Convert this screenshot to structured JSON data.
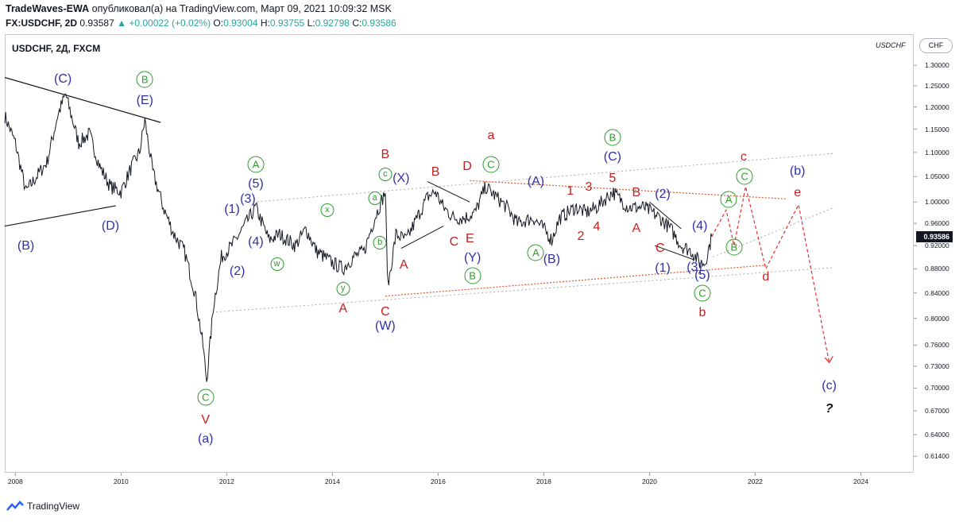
{
  "header": {
    "author": "TradeWaves-EWA",
    "published_text": "опубликовал(а) на TradingView.com, Март 09, 2021 10:09:32 MSK",
    "symbol_line": "FX:USDCHF, 2D",
    "last": "0.93587",
    "change": "+0.00022 (+0.02%)",
    "o_label": "O:",
    "o": "0.93004",
    "h_label": "H:",
    "h": "0.93755",
    "l_label": "L:",
    "l": "0.92798",
    "c_label": "C:",
    "c": "0.93586"
  },
  "chart_title": "USDCHF, 2Д, FXCM",
  "watermark_symbol": "USDCHF",
  "currency_button": "CHF",
  "footer_brand": "TradingView",
  "colors": {
    "blue": "#2e31a8",
    "red": "#c81e1e",
    "green": "#2e9b2e",
    "candle": "#131722"
  },
  "chart_data": {
    "type": "line",
    "price_axis": {
      "ticks": [
        "1.30000",
        "1.25000",
        "1.20000",
        "1.15000",
        "1.10000",
        "1.05000",
        "1.00000",
        "0.96000",
        "0.92000",
        "0.88000",
        "0.84000",
        "0.80000",
        "0.76000",
        "0.73000",
        "0.70000",
        "0.67000",
        "0.64000",
        "0.61400"
      ],
      "scale": "log",
      "range": [
        0.595,
        1.38
      ]
    },
    "time_axis": {
      "ticks": [
        "2008",
        "2010",
        "2012",
        "2014",
        "2016",
        "2018",
        "2020",
        "2022",
        "2024"
      ],
      "range": [
        2007.8,
        2025.0
      ]
    },
    "last_price_label": "0.93586",
    "series": [
      {
        "values": [
          [
            2007.8,
            1.18
          ],
          [
            2008.0,
            1.12
          ],
          [
            2008.2,
            1.02
          ],
          [
            2008.4,
            1.05
          ],
          [
            2008.6,
            1.08
          ],
          [
            2008.8,
            1.18
          ],
          [
            2008.95,
            1.23
          ],
          [
            2009.2,
            1.12
          ],
          [
            2009.4,
            1.14
          ],
          [
            2009.6,
            1.07
          ],
          [
            2009.8,
            1.03
          ],
          [
            2010.0,
            1.02
          ],
          [
            2010.2,
            1.07
          ],
          [
            2010.35,
            1.1
          ],
          [
            2010.45,
            1.17
          ],
          [
            2010.6,
            1.06
          ],
          [
            2010.8,
            0.99
          ],
          [
            2011.0,
            0.94
          ],
          [
            2011.2,
            0.91
          ],
          [
            2011.4,
            0.84
          ],
          [
            2011.55,
            0.76
          ],
          [
            2011.62,
            0.71
          ],
          [
            2011.75,
            0.82
          ],
          [
            2011.9,
            0.9
          ],
          [
            2012.1,
            0.92
          ],
          [
            2012.3,
            0.95
          ],
          [
            2012.55,
            0.99
          ],
          [
            2012.8,
            0.93
          ],
          [
            2013.0,
            0.94
          ],
          [
            2013.3,
            0.92
          ],
          [
            2013.5,
            0.95
          ],
          [
            2013.7,
            0.91
          ],
          [
            2014.0,
            0.89
          ],
          [
            2014.2,
            0.88
          ],
          [
            2014.4,
            0.9
          ],
          [
            2014.6,
            0.91
          ],
          [
            2014.8,
            0.97
          ],
          [
            2015.0,
            1.02
          ],
          [
            2015.05,
            0.85
          ],
          [
            2015.2,
            0.94
          ],
          [
            2015.4,
            0.93
          ],
          [
            2015.6,
            0.97
          ],
          [
            2015.8,
            1.01
          ],
          [
            2015.95,
            1.02
          ],
          [
            2016.1,
            0.99
          ],
          [
            2016.3,
            0.97
          ],
          [
            2016.5,
            0.97
          ],
          [
            2016.7,
            0.98
          ],
          [
            2016.9,
            1.03
          ],
          [
            2017.1,
            1.01
          ],
          [
            2017.3,
            0.99
          ],
          [
            2017.5,
            0.96
          ],
          [
            2017.8,
            0.97
          ],
          [
            2018.0,
            0.95
          ],
          [
            2018.15,
            0.93
          ],
          [
            2018.3,
            0.97
          ],
          [
            2018.6,
            0.99
          ],
          [
            2018.8,
            0.98
          ],
          [
            2019.0,
            0.99
          ],
          [
            2019.3,
            1.02
          ],
          [
            2019.6,
            0.99
          ],
          [
            2019.9,
            0.99
          ],
          [
            2020.2,
            0.97
          ],
          [
            2020.4,
            0.95
          ],
          [
            2020.6,
            0.92
          ],
          [
            2020.8,
            0.91
          ],
          [
            2020.95,
            0.89
          ],
          [
            2021.05,
            0.89
          ],
          [
            2021.18,
            0.936
          ]
        ]
      }
    ],
    "annotations": [
      {
        "text": "(C)",
        "color": "blue",
        "x": 2008.9,
        "y": 1.265
      },
      {
        "text": "B",
        "color": "green",
        "circled": true,
        "x": 2010.45,
        "y": 1.265
      },
      {
        "text": "(E)",
        "color": "blue",
        "x": 2010.45,
        "y": 1.215
      },
      {
        "text": "(B)",
        "color": "blue",
        "x": 2008.2,
        "y": 0.918
      },
      {
        "text": "(D)",
        "color": "blue",
        "x": 2009.8,
        "y": 0.955
      },
      {
        "text": "(1)",
        "color": "blue",
        "x": 2012.1,
        "y": 0.985
      },
      {
        "text": "(3)",
        "color": "blue",
        "x": 2012.4,
        "y": 1.005
      },
      {
        "text": "A",
        "color": "green",
        "circled": true,
        "x": 2012.55,
        "y": 1.075
      },
      {
        "text": "(5)",
        "color": "blue",
        "x": 2012.55,
        "y": 1.035
      },
      {
        "text": "(4)",
        "color": "blue",
        "x": 2012.55,
        "y": 0.925
      },
      {
        "text": "(2)",
        "color": "blue",
        "x": 2012.2,
        "y": 0.875
      },
      {
        "text": "w",
        "color": "green",
        "circled": true,
        "small": true,
        "x": 2012.95,
        "y": 0.888
      },
      {
        "text": "x",
        "color": "green",
        "circled": true,
        "small": true,
        "x": 2013.9,
        "y": 0.985
      },
      {
        "text": "y",
        "color": "green",
        "circled": true,
        "small": true,
        "x": 2014.2,
        "y": 0.848
      },
      {
        "text": "A",
        "color": "red",
        "x": 2014.2,
        "y": 0.815
      },
      {
        "text": "a",
        "color": "green",
        "circled": true,
        "small": true,
        "x": 2014.8,
        "y": 1.008
      },
      {
        "text": "b",
        "color": "green",
        "circled": true,
        "small": true,
        "x": 2014.9,
        "y": 0.925
      },
      {
        "text": "c",
        "color": "green",
        "circled": true,
        "small": true,
        "x": 2015.0,
        "y": 1.055
      },
      {
        "text": "B",
        "color": "red",
        "x": 2015.0,
        "y": 1.095
      },
      {
        "text": "(X)",
        "color": "blue",
        "x": 2015.3,
        "y": 1.045
      },
      {
        "text": "A",
        "color": "red",
        "x": 2015.35,
        "y": 0.885
      },
      {
        "text": "C",
        "color": "red",
        "x": 2015.0,
        "y": 0.81
      },
      {
        "text": "(W)",
        "color": "blue",
        "x": 2015.0,
        "y": 0.788
      },
      {
        "text": "B",
        "color": "red",
        "x": 2015.95,
        "y": 1.058
      },
      {
        "text": "D",
        "color": "red",
        "x": 2016.55,
        "y": 1.07
      },
      {
        "text": "C",
        "color": "red",
        "x": 2016.3,
        "y": 0.925
      },
      {
        "text": "E",
        "color": "red",
        "x": 2016.6,
        "y": 0.932
      },
      {
        "text": "(Y)",
        "color": "blue",
        "x": 2016.65,
        "y": 0.898
      },
      {
        "text": "B",
        "color": "green",
        "circled": true,
        "x": 2016.65,
        "y": 0.868
      },
      {
        "text": "a",
        "color": "red",
        "x": 2017.0,
        "y": 1.135
      },
      {
        "text": "C",
        "color": "green",
        "circled": true,
        "x": 2017.0,
        "y": 1.075
      },
      {
        "text": "(A)",
        "color": "blue",
        "x": 2017.85,
        "y": 1.04
      },
      {
        "text": "A",
        "color": "green",
        "circled": true,
        "x": 2017.85,
        "y": 0.908
      },
      {
        "text": "(B)",
        "color": "blue",
        "x": 2018.15,
        "y": 0.895
      },
      {
        "text": "1",
        "color": "red",
        "x": 2018.5,
        "y": 1.02
      },
      {
        "text": "2",
        "color": "red",
        "x": 2018.7,
        "y": 0.936
      },
      {
        "text": "3",
        "color": "red",
        "x": 2018.85,
        "y": 1.028
      },
      {
        "text": "4",
        "color": "red",
        "x": 2019.0,
        "y": 0.953
      },
      {
        "text": "5",
        "color": "red",
        "x": 2019.3,
        "y": 1.045
      },
      {
        "text": "B",
        "color": "green",
        "circled": true,
        "x": 2019.3,
        "y": 1.132
      },
      {
        "text": "(C)",
        "color": "blue",
        "x": 2019.3,
        "y": 1.09
      },
      {
        "text": "B",
        "color": "red",
        "x": 2019.75,
        "y": 1.018
      },
      {
        "text": "A",
        "color": "red",
        "x": 2019.75,
        "y": 0.95
      },
      {
        "text": "(2)",
        "color": "blue",
        "x": 2020.25,
        "y": 1.015
      },
      {
        "text": "C",
        "color": "red",
        "x": 2020.2,
        "y": 0.915
      },
      {
        "text": "(1)",
        "color": "blue",
        "x": 2020.25,
        "y": 0.88
      },
      {
        "text": "(3)",
        "color": "blue",
        "x": 2020.85,
        "y": 0.881
      },
      {
        "text": "(4)",
        "color": "blue",
        "x": 2020.95,
        "y": 0.955
      },
      {
        "text": "(5)",
        "color": "blue",
        "x": 2021.0,
        "y": 0.868
      },
      {
        "text": "C",
        "color": "green",
        "circled": true,
        "x": 2021.0,
        "y": 0.84
      },
      {
        "text": "b",
        "color": "red",
        "x": 2021.0,
        "y": 0.808
      },
      {
        "text": "A",
        "color": "green",
        "circled": true,
        "x": 2021.5,
        "y": 1.005
      },
      {
        "text": "B",
        "color": "green",
        "circled": true,
        "x": 2021.6,
        "y": 0.917
      },
      {
        "text": "C",
        "color": "green",
        "circled": true,
        "x": 2021.8,
        "y": 1.05
      },
      {
        "text": "c",
        "color": "red",
        "x": 2021.78,
        "y": 1.09
      },
      {
        "text": "d",
        "color": "red",
        "x": 2022.2,
        "y": 0.866
      },
      {
        "text": "e",
        "color": "red",
        "x": 2022.8,
        "y": 1.018
      },
      {
        "text": "(b)",
        "color": "blue",
        "x": 2022.8,
        "y": 1.06
      },
      {
        "text": "(c)",
        "color": "blue",
        "x": 2023.4,
        "y": 0.703
      },
      {
        "text": "?",
        "color": "black",
        "x": 2023.4,
        "y": 0.672
      },
      {
        "text": "C",
        "color": "green",
        "circled": true,
        "x": 2011.6,
        "y": 0.688
      },
      {
        "text": "V",
        "color": "red",
        "x": 2011.6,
        "y": 0.658
      },
      {
        "text": "(a)",
        "color": "blue",
        "x": 2011.6,
        "y": 0.634
      }
    ]
  }
}
